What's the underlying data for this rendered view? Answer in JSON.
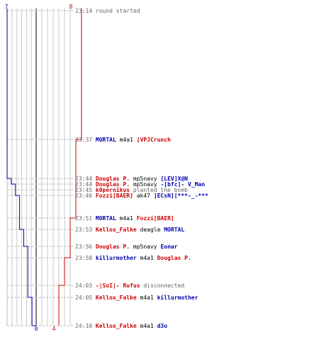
{
  "colors": {
    "ct": "#0000b0",
    "t": "#cc0000",
    "neutral": "#555555",
    "grid": "#c8c8c8",
    "dash": "#b8b8b8",
    "center_line": "#808080",
    "event_text": "#666666",
    "weapon_text": "#000000"
  },
  "scores": {
    "ct_start": "7",
    "t_start": "8",
    "ct_end": "0",
    "t_end": "4"
  },
  "events": [
    {
      "time": "23:14",
      "parts": [
        {
          "text": "round started",
          "team": "neutral"
        }
      ]
    },
    {
      "time": "23:37",
      "parts": [
        {
          "text": "MORTAL",
          "team": "ct"
        },
        {
          "text": " m4a1 ",
          "team": "weapon"
        },
        {
          "text": "[VPJCrunch",
          "team": "t"
        }
      ]
    },
    {
      "time": "23:44",
      "parts": [
        {
          "text": "Douglas P.",
          "team": "t"
        },
        {
          "text": " mp5navy ",
          "team": "weapon"
        },
        {
          "text": "[LEV]X@N",
          "team": "ct"
        }
      ]
    },
    {
      "time": "23:44",
      "parts": [
        {
          "text": "Douglas P.",
          "team": "t"
        },
        {
          "text": " mp5navy ",
          "team": "weapon"
        },
        {
          "text": "-[bfc]- V_Man",
          "team": "ct"
        }
      ]
    },
    {
      "time": "23:45",
      "parts": [
        {
          "text": "k0pernikus",
          "team": "t"
        },
        {
          "text": " planted the bomb",
          "team": "neutral"
        }
      ]
    },
    {
      "time": "23:46",
      "parts": [
        {
          "text": "Fozzi[BAER]",
          "team": "t"
        },
        {
          "text": " ak47 ",
          "team": "weapon"
        },
        {
          "text": "]ECsN][***-_-***",
          "team": "ct"
        }
      ]
    },
    {
      "time": "23:51",
      "parts": [
        {
          "text": "MORTAL",
          "team": "ct"
        },
        {
          "text": " m4a1 ",
          "team": "weapon"
        },
        {
          "text": "Fozzi[BAER]",
          "team": "t"
        }
      ]
    },
    {
      "time": "23:53",
      "parts": [
        {
          "text": "Kellox_Falke",
          "team": "t"
        },
        {
          "text": " deagle ",
          "team": "weapon"
        },
        {
          "text": "MORTAL",
          "team": "ct"
        }
      ]
    },
    {
      "time": "23:56",
      "parts": [
        {
          "text": "Douglas P.",
          "team": "t"
        },
        {
          "text": " mp5navy ",
          "team": "weapon"
        },
        {
          "text": "Eonar",
          "team": "ct"
        }
      ]
    },
    {
      "time": "23:58",
      "parts": [
        {
          "text": "killurmother",
          "team": "ct"
        },
        {
          "text": " m4a1 ",
          "team": "weapon"
        },
        {
          "text": "Douglas P.",
          "team": "t"
        }
      ]
    },
    {
      "time": "24:03",
      "parts": [
        {
          "text": "-|SoI|- Rufus",
          "team": "t"
        },
        {
          "text": " disconnected",
          "team": "neutral"
        }
      ]
    },
    {
      "time": "24:05",
      "parts": [
        {
          "text": "Kellox_Falke",
          "team": "t"
        },
        {
          "text": " m4a1 ",
          "team": "weapon"
        },
        {
          "text": "killurmother",
          "team": "ct"
        }
      ]
    },
    {
      "time": "24:10",
      "parts": [
        {
          "text": "Kellox_Falke",
          "team": "t"
        },
        {
          "text": " m4a1 ",
          "team": "weapon"
        },
        {
          "text": "d3o",
          "team": "ct"
        }
      ]
    }
  ],
  "alive_counts": {
    "ct": [
      7,
      7,
      6,
      5,
      5,
      4,
      4,
      3,
      2,
      2,
      2,
      1,
      0
    ],
    "t": [
      8,
      7,
      7,
      7,
      7,
      7,
      6,
      6,
      6,
      5,
      4,
      4,
      4
    ]
  }
}
